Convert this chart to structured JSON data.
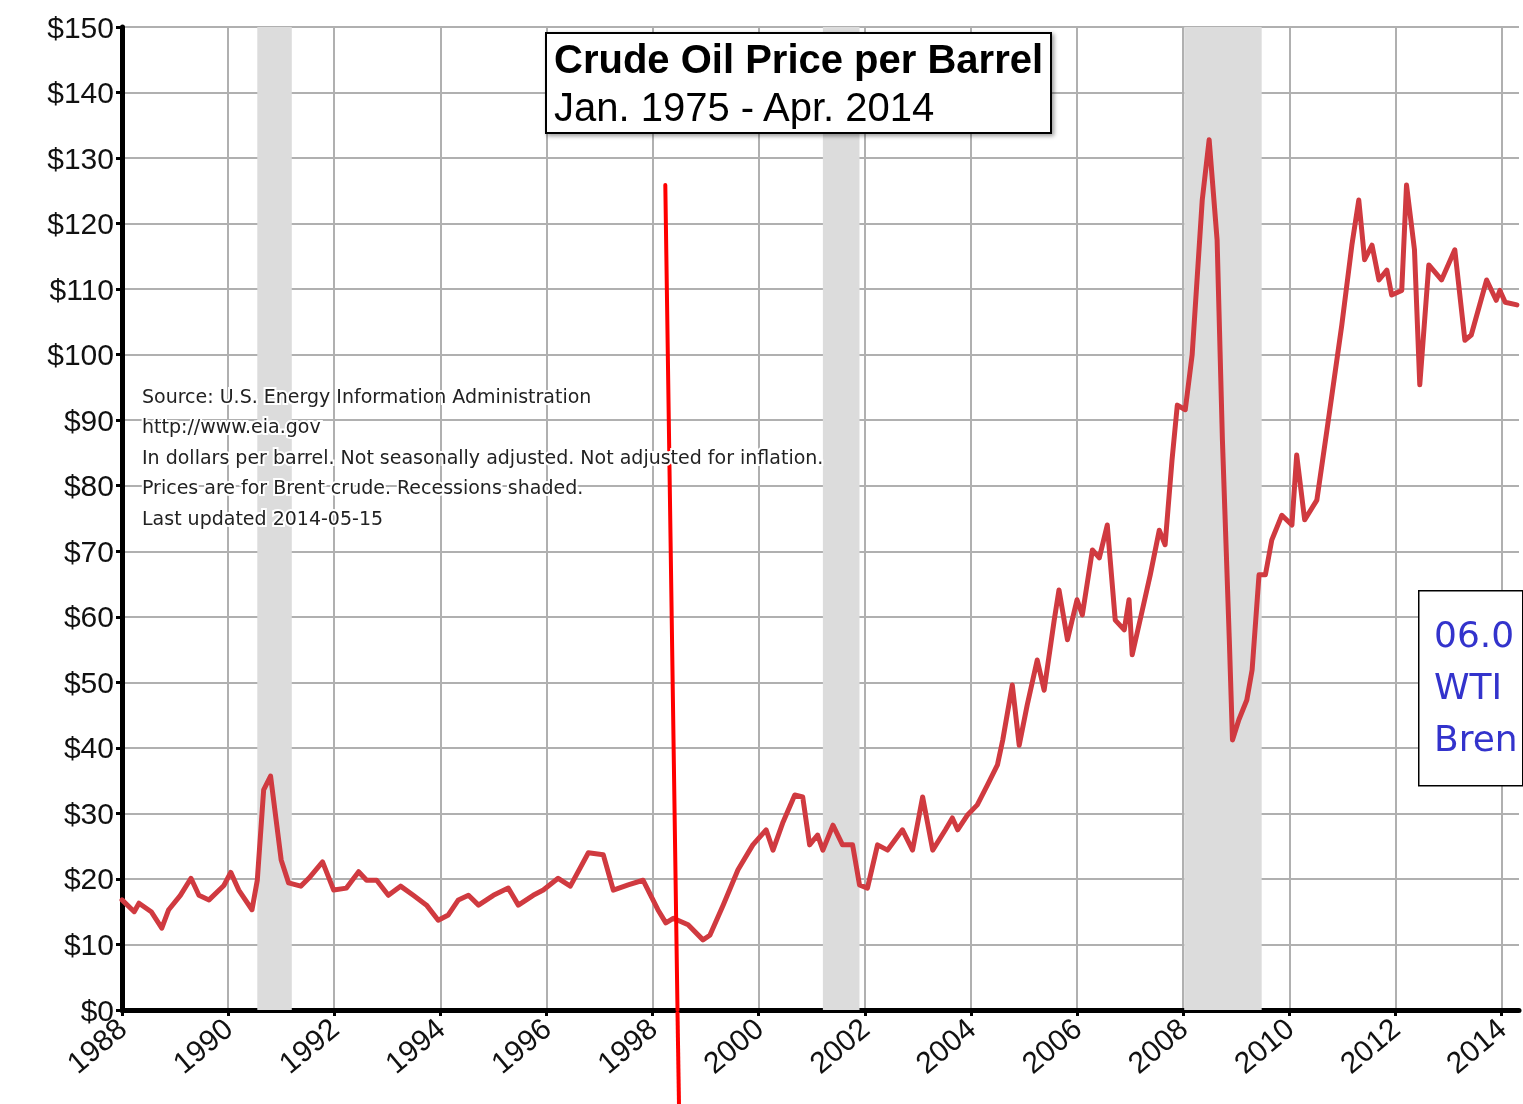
{
  "chart_data": {
    "type": "line",
    "title": "Crude Oil Price per Barrel",
    "subtitle": "Jan. 1975 - Apr. 2014",
    "annotations": [
      "Source: U.S. Energy Information Administration",
      "http://www.eia.gov",
      "In dollars per barrel. Not seasonally adjusted. Not adjusted for inflation.",
      "Prices are for Brent crude. Recessions shaded.",
      "Last updated 2014-05-15",
      "06.0",
      "WTI",
      "Bren"
    ],
    "x": [
      1988.0,
      1988.23,
      1988.32,
      1988.55,
      1988.75,
      1988.88,
      1989.1,
      1989.3,
      1989.45,
      1989.64,
      1989.92,
      1990.05,
      1990.2,
      1990.45,
      1990.55,
      1990.67,
      1990.8,
      1991.0,
      1991.14,
      1991.37,
      1991.52,
      1991.78,
      1991.99,
      1992.23,
      1992.46,
      1992.61,
      1992.8,
      1993.02,
      1993.25,
      1993.49,
      1993.74,
      1993.96,
      1994.15,
      1994.34,
      1994.53,
      1994.72,
      1995.0,
      1995.28,
      1995.47,
      1995.75,
      1995.94,
      1996.22,
      1996.45,
      1996.79,
      1997.07,
      1997.26,
      1997.54,
      1997.82,
      1998.1,
      1998.25,
      1998.39,
      1998.67,
      1998.95,
      1999.08,
      1999.33,
      1999.61,
      1999.89,
      2000.14,
      2000.27,
      2000.46,
      2000.68,
      2000.83,
      2000.96,
      2001.11,
      2001.21,
      2001.4,
      2001.58,
      2001.77,
      2001.9,
      2002.05,
      2002.24,
      2002.43,
      2002.71,
      2002.9,
      2003.09,
      2003.28,
      2003.52,
      2003.65,
      2003.75,
      2003.94,
      2004.12,
      2004.31,
      2004.5,
      2004.6,
      2004.78,
      2004.91,
      2005.06,
      2005.25,
      2005.38,
      2005.57,
      2005.66,
      2005.82,
      2006.0,
      2006.1,
      2006.29,
      2006.42,
      2006.57,
      2006.72,
      2006.89,
      2006.98,
      2007.04,
      2007.23,
      2007.38,
      2007.55,
      2007.66,
      2007.79,
      2007.89,
      2008.04,
      2008.17,
      2008.36,
      2008.49,
      2008.64,
      2008.74,
      2008.87,
      2008.93,
      2009.05,
      2009.2,
      2009.3,
      2009.43,
      2009.55,
      2009.67,
      2009.86,
      2010.05,
      2010.14,
      2010.29,
      2010.52,
      2010.71,
      2010.99,
      2011.18,
      2011.31,
      2011.42,
      2011.56,
      2011.69,
      2011.84,
      2011.93,
      2012.12,
      2012.21,
      2012.36,
      2012.46,
      2012.63,
      2012.87,
      2013.12,
      2013.31,
      2013.43,
      2013.72,
      2013.9,
      2013.97,
      2014.07,
      2014.29
    ],
    "series": [
      {
        "color": "#d03a40",
        "values": [
          16.8,
          15,
          16.3,
          15,
          12.5,
          15.3,
          17.5,
          20.1,
          17.5,
          16.8,
          19,
          21,
          18.3,
          15.3,
          19.8,
          33.6,
          35.7,
          22.9,
          19.4,
          18.9,
          20.1,
          22.6,
          18.3,
          18.6,
          21.1,
          19.8,
          19.8,
          17.5,
          18.9,
          17.5,
          16,
          13.7,
          14.5,
          16.8,
          17.5,
          16,
          17.5,
          18.6,
          16,
          17.5,
          18.3,
          20.1,
          18.9,
          24,
          23.7,
          18.3,
          19.1,
          19.8,
          15.3,
          13.3,
          14,
          13,
          10.7,
          11.4,
          16,
          21.4,
          25.2,
          27.5,
          24.4,
          28.7,
          32.8,
          32.5,
          25.2,
          26.7,
          24.4,
          28.2,
          25.2,
          25.2,
          19.1,
          18.6,
          25.2,
          24.4,
          27.5,
          24.4,
          32.5,
          24.4,
          27.5,
          29.3,
          27.5,
          29.8,
          31.3,
          34.3,
          37.4,
          41.2,
          49.6,
          40.4,
          46.5,
          53.4,
          48.8,
          59.5,
          64.1,
          56.5,
          62.6,
          60.3,
          70.2,
          69,
          74,
          59.5,
          58,
          62.6,
          54.2,
          61,
          66.4,
          73.2,
          71,
          83.9,
          92.3,
          91.6,
          100,
          123.6,
          132.8,
          117.5,
          87,
          56.5,
          41.2,
          44.3,
          47.3,
          51.9,
          66.4,
          66.4,
          71.7,
          75.5,
          74,
          84.7,
          74.8,
          77.8,
          88.5,
          104.5,
          116.7,
          123.6,
          114.5,
          116.7,
          111.4,
          112.9,
          109.1,
          109.8,
          125.9,
          116,
          95.4,
          113.7,
          111.4,
          116,
          102.2,
          103,
          111.4,
          108.3,
          109.8,
          108,
          107.6
        ]
      },
      {
        "type": "line",
        "color": "#ff0000",
        "x": [
          1998.24,
          1998.47
        ],
        "values": [
          125.9,
          0
        ]
      }
    ],
    "xlim": [
      1988,
      2014.33
    ],
    "xticks": [
      1988,
      1990,
      1992,
      1994,
      1996,
      1998,
      2000,
      2002,
      2004,
      2006,
      2008,
      2010,
      2012,
      2014
    ],
    "ylim": [
      0,
      150
    ],
    "yticks": [
      {
        "value": 0,
        "label": "$0"
      },
      {
        "value": 10,
        "label": "$10"
      },
      {
        "value": 20,
        "label": "$20"
      },
      {
        "value": 30,
        "label": "$30"
      },
      {
        "value": 40,
        "label": "$40"
      },
      {
        "value": 50,
        "label": "$50"
      },
      {
        "value": 60,
        "label": "$60"
      },
      {
        "value": 70,
        "label": "$70"
      },
      {
        "value": 80,
        "label": "$80"
      },
      {
        "value": 90,
        "label": "$90"
      },
      {
        "value": 100,
        "label": "$100"
      },
      {
        "value": 110,
        "label": "$110"
      },
      {
        "value": 120,
        "label": "$120"
      },
      {
        "value": 130,
        "label": "$130"
      },
      {
        "value": 140,
        "label": "$140"
      },
      {
        "value": 150,
        "label": "$150"
      }
    ],
    "bands": [
      {
        "axis": "x",
        "from": 1990.55,
        "to": 1991.2,
        "color": "#dcdcdc"
      },
      {
        "axis": "x",
        "from": 2001.21,
        "to": 2001.9,
        "color": "#dcdcdc"
      },
      {
        "axis": "x",
        "from": 2008.02,
        "to": 2009.48,
        "color": "#dcdcdc"
      }
    ],
    "grid": true,
    "marker": "none",
    "line_style": "solid"
  }
}
